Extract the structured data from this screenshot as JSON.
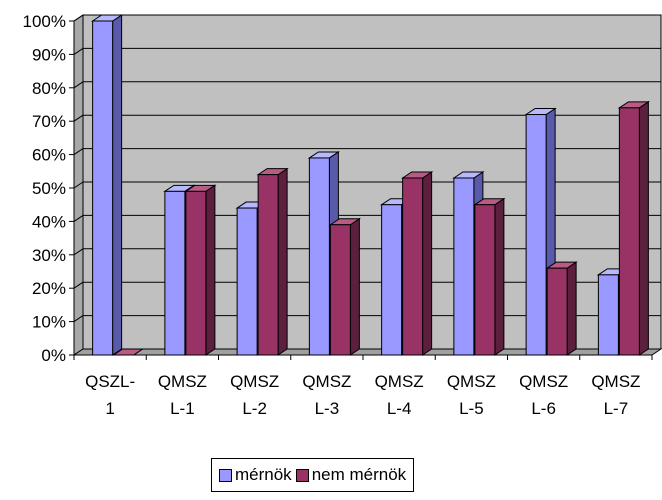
{
  "chart_data": {
    "type": "bar",
    "categories": [
      [
        "QSZL-",
        "1"
      ],
      [
        "QMSZ",
        "L-1"
      ],
      [
        "QMSZ",
        "L-2"
      ],
      [
        "QMSZ",
        "L-3"
      ],
      [
        "QMSZ",
        "L-4"
      ],
      [
        "QMSZ",
        "L-5"
      ],
      [
        "QMSZ",
        "L-6"
      ],
      [
        "QMSZ",
        "L-7"
      ]
    ],
    "series": [
      {
        "name": "mérnök",
        "values": [
          100,
          49,
          44,
          59,
          45,
          53,
          72,
          24
        ],
        "color": "#9999ff"
      },
      {
        "name": "nem mérnök",
        "values": [
          0,
          49,
          54,
          39,
          53,
          45,
          26,
          74
        ],
        "color": "#993366"
      }
    ],
    "y_ticks": [
      "0%",
      "10%",
      "20%",
      "30%",
      "40%",
      "50%",
      "60%",
      "70%",
      "80%",
      "90%",
      "100%"
    ],
    "ylim": [
      0,
      100
    ],
    "grid": true,
    "plot_background": "#c0c0c0",
    "style": "3d-clustered-column",
    "legend_position": "bottom"
  }
}
